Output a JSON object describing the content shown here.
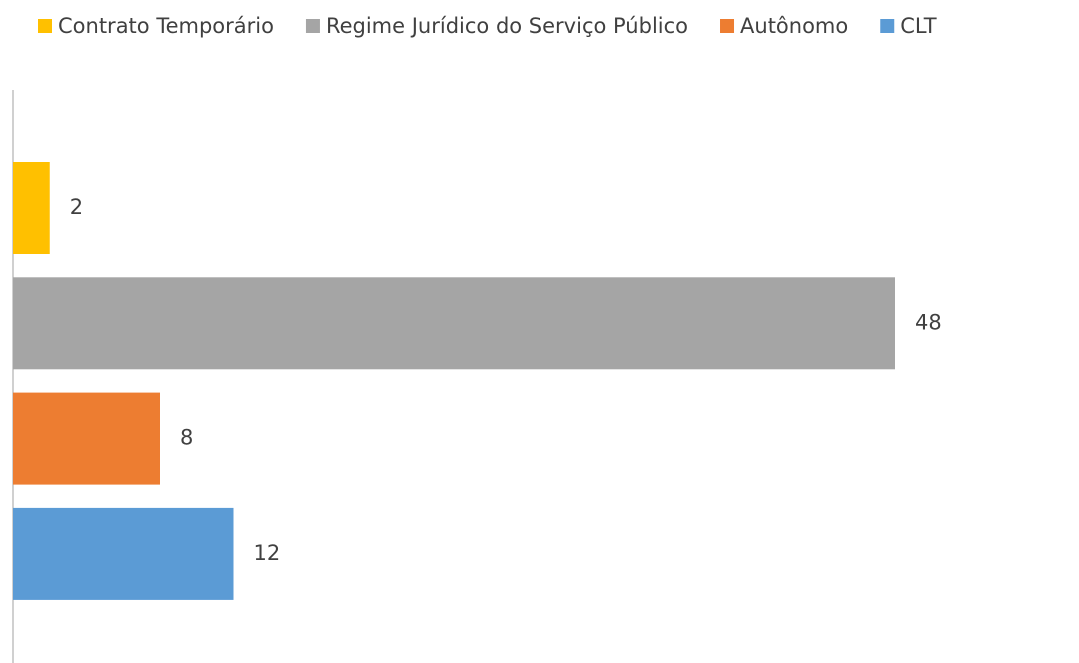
{
  "chart_data": {
    "type": "bar",
    "orientation": "horizontal",
    "legend": "top",
    "series": [
      {
        "name": "Contrato Temporário",
        "color": "#ffc000",
        "values": [
          2
        ]
      },
      {
        "name": "Regime Jurídico do Serviço Público",
        "color": "#a5a5a5",
        "values": [
          48
        ]
      },
      {
        "name": "Autônomo",
        "color": "#ed7d31",
        "values": [
          8
        ]
      },
      {
        "name": "CLT",
        "color": "#5b9bd5",
        "values": [
          12
        ]
      }
    ]
  }
}
